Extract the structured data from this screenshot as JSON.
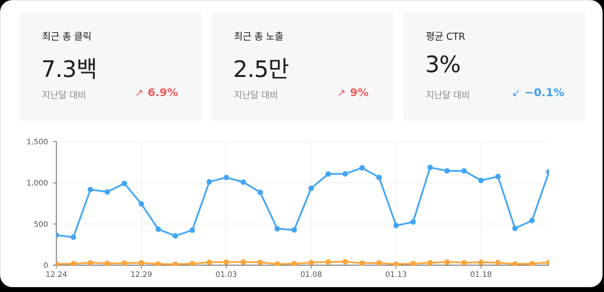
{
  "cards": [
    {
      "title": "최근 총 클릭",
      "value": "7.3백",
      "compare_label": "지난달 대비",
      "delta": "6.9%",
      "delta_direction": "up",
      "delta_icon": "arrow-up-right-icon",
      "delta_glyph": "↗",
      "delta_color": "#f05a5a"
    },
    {
      "title": "최근 총 노출",
      "value": "2.5만",
      "compare_label": "지난달 대비",
      "delta": "9%",
      "delta_direction": "up",
      "delta_icon": "arrow-up-right-icon",
      "delta_glyph": "↗",
      "delta_color": "#f05a5a"
    },
    {
      "title": "평균 CTR",
      "value": "3%",
      "compare_label": "지난달 대비",
      "delta": "−0.1%",
      "delta_direction": "down",
      "delta_icon": "arrow-down-left-icon",
      "delta_glyph": "↙",
      "delta_color": "#3ea0f5"
    }
  ],
  "colors": {
    "series_blue": "#42a5f5",
    "series_orange": "#ffa53c",
    "grid": "#efefef",
    "axis": "#666666",
    "card_bg": "#f6f7f9"
  },
  "chart_data": {
    "type": "line",
    "title": "",
    "xlabel": "",
    "ylabel": "",
    "ylim": [
      0,
      1500
    ],
    "yticks": [
      "0",
      "500",
      "1,000",
      "1,500"
    ],
    "ytick_values": [
      0,
      500,
      1000,
      1500
    ],
    "xtick_labels": [
      "12.24",
      "12.29",
      "01.03",
      "01.08",
      "01.13",
      "01.18"
    ],
    "grid": true,
    "legend": "none",
    "x": [
      "12.24",
      "12.25",
      "12.26",
      "12.27",
      "12.28",
      "12.29",
      "12.30",
      "12.31",
      "01.01",
      "01.02",
      "01.03",
      "01.04",
      "01.05",
      "01.06",
      "01.07",
      "01.08",
      "01.09",
      "01.10",
      "01.11",
      "01.12",
      "01.13",
      "01.14",
      "01.15",
      "01.16",
      "01.17",
      "01.18",
      "01.19",
      "01.20",
      "01.21",
      "01.22"
    ],
    "series": [
      {
        "name": "series-blue",
        "color": "#42a5f5",
        "values": [
          365,
          340,
          917,
          889,
          992,
          744,
          436,
          356,
          425,
          1011,
          1064,
          1008,
          883,
          442,
          428,
          933,
          1106,
          1108,
          1181,
          1064,
          481,
          525,
          1186,
          1144,
          1144,
          1028,
          1075,
          447,
          542,
          1131
        ]
      },
      {
        "name": "series-orange",
        "color": "#ffa53c",
        "values": [
          15,
          20,
          30,
          22,
          25,
          30,
          15,
          12,
          20,
          35,
          38,
          38,
          35,
          15,
          18,
          32,
          40,
          42,
          25,
          28,
          12,
          20,
          30,
          38,
          30,
          35,
          32,
          15,
          18,
          35
        ]
      }
    ]
  }
}
